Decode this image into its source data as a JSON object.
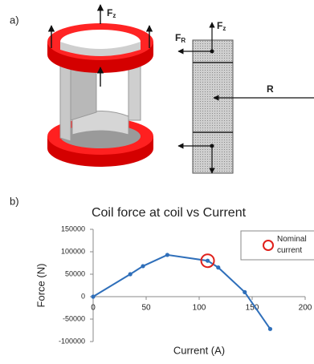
{
  "panel_a": {
    "label": "a)",
    "force_top": {
      "base": "F",
      "sub": "z"
    },
    "force_section": {
      "base": "F",
      "sub": "z"
    },
    "force_radial": {
      "base": "F",
      "sub": "R"
    },
    "radius": "R"
  },
  "panel_b": {
    "label": "b)"
  },
  "chart_data": {
    "type": "line",
    "title": "Coil force at coil vs Current",
    "xlabel": "Current (A)",
    "ylabel": "Force (N)",
    "x": [
      0,
      35,
      47,
      70,
      108,
      118,
      143,
      167
    ],
    "series": [
      {
        "color": "#2f6fba",
        "values": [
          0,
          50000,
          68000,
          93000,
          80000,
          65000,
          10000,
          -72000
        ]
      }
    ],
    "highlight": {
      "name": "Nominal current",
      "color": "#e0201b",
      "x": [
        108
      ],
      "values": [
        80000
      ]
    },
    "xlim": [
      0,
      200
    ],
    "xticks": [
      0,
      50,
      100,
      150,
      200
    ],
    "ylim": [
      -100000,
      150000
    ],
    "yticks": [
      -100000,
      -50000,
      0,
      50000,
      100000,
      150000
    ],
    "grid": false,
    "legend": "top-right"
  }
}
